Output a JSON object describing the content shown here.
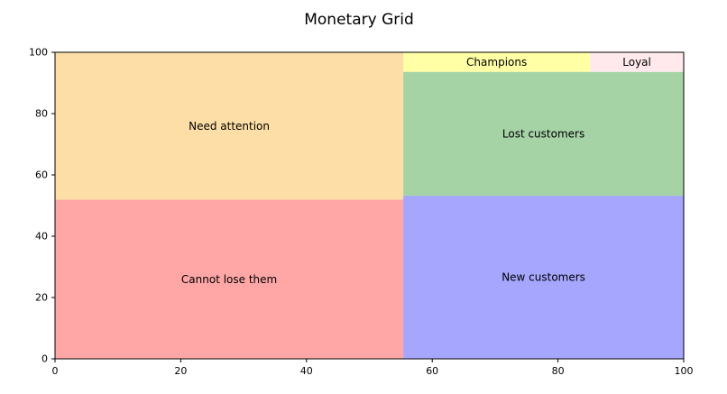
{
  "chart_data": {
    "type": "treemap",
    "title": "Monetary Grid",
    "xlabel": "",
    "ylabel": "",
    "xlim": [
      0,
      100
    ],
    "ylim": [
      0,
      100
    ],
    "x_ticks": [
      0,
      20,
      40,
      60,
      80,
      100
    ],
    "y_ticks": [
      0,
      20,
      40,
      60,
      80,
      100
    ],
    "grid": false,
    "alpha": 0.35,
    "segments": [
      {
        "label": "Cannot lose them",
        "x": 0,
        "y": 0,
        "dx": 55.4,
        "dy": 51.9,
        "color": "#ff0000"
      },
      {
        "label": "Need attention",
        "x": 0,
        "y": 51.9,
        "dx": 55.4,
        "dy": 48.1,
        "color": "#f5a000"
      },
      {
        "label": "New customers",
        "x": 55.4,
        "y": 0,
        "dx": 44.6,
        "dy": 53.2,
        "color": "#0000ff"
      },
      {
        "label": "Lost customers",
        "x": 55.4,
        "y": 53.2,
        "dx": 44.6,
        "dy": 40.4,
        "color": "#008000"
      },
      {
        "label": "Champions",
        "x": 55.4,
        "y": 93.6,
        "dx": 29.7,
        "dy": 6.4,
        "color": "#ffff00"
      },
      {
        "label": "Loyal",
        "x": 85.1,
        "y": 93.6,
        "dx": 14.9,
        "dy": 6.4,
        "color": "#ffc0cb"
      }
    ]
  }
}
